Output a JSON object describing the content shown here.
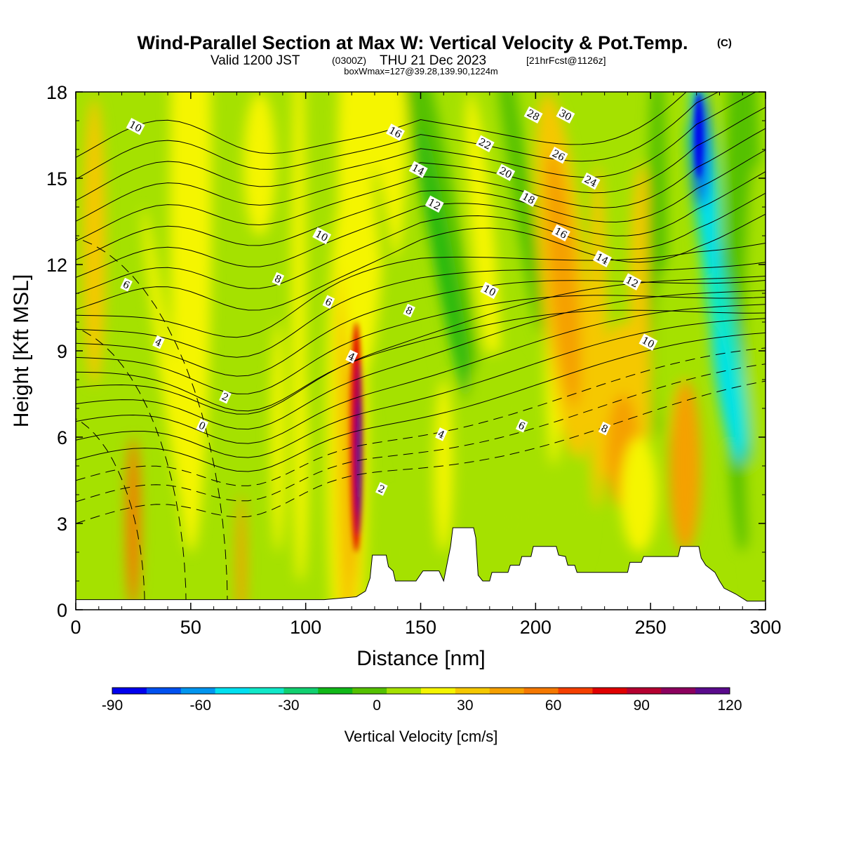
{
  "title": {
    "main": "Wind-Parallel Section at Max W: Vertical Velocity & Pot.Temp.",
    "mark": "(C)",
    "valid_a": "Valid 1200 JST",
    "valid_b": "(0300Z)",
    "valid_c": "THU 21 Dec 2023",
    "valid_d": "[21hrFcst@1126z]",
    "box": "boxWmax=127@39.28,139.90,1224m"
  },
  "chart_data": {
    "type": "heatmap",
    "xlabel": "Distance [nm]",
    "ylabel": "Height [Kft MSL]",
    "xlim": [
      0,
      300
    ],
    "ylim": [
      0,
      18
    ],
    "x_ticks": [
      0,
      50,
      100,
      150,
      200,
      250,
      300
    ],
    "y_ticks": [
      0,
      3,
      6,
      9,
      12,
      15,
      18
    ],
    "colorbar": {
      "title": "Vertical Velocity [cm/s]",
      "levels": [
        -90,
        -80,
        -70,
        -60,
        -50,
        -40,
        -30,
        -20,
        -10,
        0,
        10,
        20,
        30,
        40,
        50,
        60,
        70,
        80,
        90,
        100,
        110,
        120
      ],
      "tick_labels": [
        "-90",
        "-60",
        "-30",
        "0",
        "30",
        "60",
        "90",
        "120"
      ],
      "colors": [
        "#0000ee",
        "#0050f0",
        "#0095ef",
        "#00e0f0",
        "#10e8c8",
        "#11d070",
        "#10b818",
        "#54c100",
        "#a5e100",
        "#f5f500",
        "#f5c800",
        "#f5a000",
        "#f57800",
        "#f53f00",
        "#e00000",
        "#b50030",
        "#8c005e",
        "#5a0a8c"
      ]
    },
    "w_maxima": [
      {
        "label": "updraft core",
        "x": 123,
        "y": 5.5,
        "value": 127
      },
      {
        "label": "downdraft core",
        "x": 272,
        "y": 16.5,
        "value": -88
      }
    ],
    "theta_contour_labels": [
      {
        "text": "10",
        "x": 26,
        "y": 16.8
      },
      {
        "text": "16",
        "x": 139,
        "y": 16.6
      },
      {
        "text": "14",
        "x": 149,
        "y": 15.3
      },
      {
        "text": "12",
        "x": 156,
        "y": 14.1
      },
      {
        "text": "22",
        "x": 178,
        "y": 16.2
      },
      {
        "text": "20",
        "x": 187,
        "y": 15.2
      },
      {
        "text": "28",
        "x": 199,
        "y": 17.2
      },
      {
        "text": "30",
        "x": 213,
        "y": 17.2
      },
      {
        "text": "26",
        "x": 210,
        "y": 15.8
      },
      {
        "text": "18",
        "x": 197,
        "y": 14.3
      },
      {
        "text": "24",
        "x": 224,
        "y": 14.9
      },
      {
        "text": "16",
        "x": 211,
        "y": 13.1
      },
      {
        "text": "14",
        "x": 229,
        "y": 12.2
      },
      {
        "text": "12",
        "x": 242,
        "y": 11.4
      },
      {
        "text": "10",
        "x": 107,
        "y": 13.0
      },
      {
        "text": "10",
        "x": 180,
        "y": 11.1
      },
      {
        "text": "8",
        "x": 88,
        "y": 11.5
      },
      {
        "text": "8",
        "x": 145,
        "y": 10.4
      },
      {
        "text": "6",
        "x": 22,
        "y": 11.3
      },
      {
        "text": "6",
        "x": 110,
        "y": 10.7
      },
      {
        "text": "4",
        "x": 36,
        "y": 9.3
      },
      {
        "text": "4",
        "x": 120,
        "y": 8.8
      },
      {
        "text": "2",
        "x": 65,
        "y": 7.4
      },
      {
        "text": "0",
        "x": 55,
        "y": 6.4
      },
      {
        "text": "4",
        "x": 159,
        "y": 6.1
      },
      {
        "text": "6",
        "x": 194,
        "y": 6.4
      },
      {
        "text": "8",
        "x": 230,
        "y": 6.3
      },
      {
        "text": "10",
        "x": 249,
        "y": 9.3
      },
      {
        "text": "2",
        "x": 133,
        "y": 4.2
      }
    ],
    "terrain": [
      [
        0,
        0.35
      ],
      [
        108,
        0.35
      ],
      [
        122,
        0.45
      ],
      [
        126,
        0.65
      ],
      [
        128,
        1.1
      ],
      [
        129,
        1.9
      ],
      [
        135,
        1.9
      ],
      [
        136,
        1.5
      ],
      [
        138,
        1.35
      ],
      [
        139,
        1.0
      ],
      [
        148,
        1.0
      ],
      [
        151,
        1.35
      ],
      [
        158,
        1.35
      ],
      [
        160,
        1.0
      ],
      [
        162,
        1.8
      ],
      [
        163,
        2.2
      ],
      [
        164,
        2.85
      ],
      [
        173,
        2.85
      ],
      [
        174,
        2.5
      ],
      [
        175,
        1.2
      ],
      [
        177,
        1.0
      ],
      [
        180,
        1.0
      ],
      [
        181,
        1.3
      ],
      [
        188,
        1.3
      ],
      [
        189,
        1.55
      ],
      [
        193,
        1.55
      ],
      [
        194,
        1.85
      ],
      [
        198,
        1.85
      ],
      [
        199,
        2.2
      ],
      [
        209,
        2.2
      ],
      [
        210,
        1.9
      ],
      [
        213,
        1.85
      ],
      [
        214,
        1.55
      ],
      [
        217,
        1.55
      ],
      [
        218,
        1.3
      ],
      [
        240,
        1.3
      ],
      [
        241,
        1.65
      ],
      [
        246,
        1.65
      ],
      [
        247,
        1.85
      ],
      [
        262,
        1.85
      ],
      [
        263,
        2.2
      ],
      [
        271,
        2.2
      ],
      [
        272,
        1.8
      ],
      [
        274,
        1.55
      ],
      [
        278,
        1.3
      ],
      [
        280,
        1.0
      ],
      [
        282,
        0.75
      ],
      [
        287,
        0.55
      ],
      [
        292,
        0.3
      ],
      [
        301,
        0.3
      ]
    ]
  }
}
